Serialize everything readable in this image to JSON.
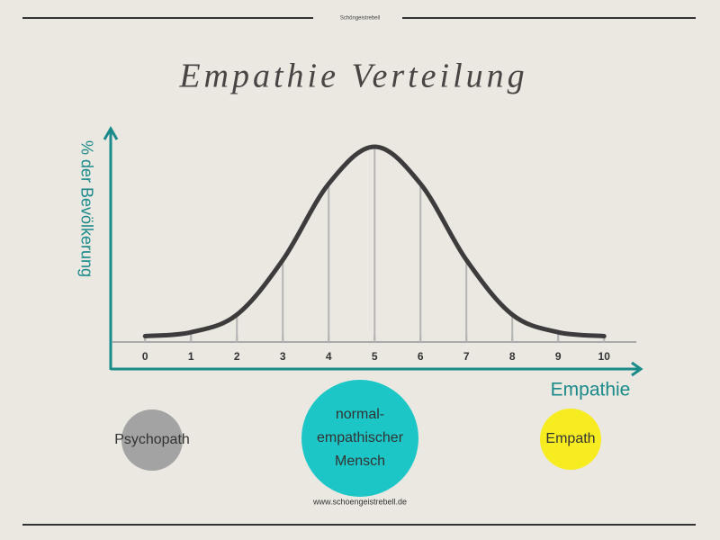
{
  "header": {
    "brand": "Schöngeistrebell"
  },
  "chart_data": {
    "type": "line",
    "title": "Empathie Verteilung",
    "x_label": "Empathie",
    "y_label": "% der Bevölkerung",
    "x": [
      0,
      1,
      2,
      3,
      4,
      5,
      6,
      7,
      8,
      9,
      10
    ],
    "values": [
      3,
      5,
      14,
      42,
      81,
      100,
      81,
      42,
      14,
      5,
      3
    ],
    "xlim": [
      -0.75,
      10.8
    ],
    "xticks": [
      0,
      1,
      2,
      3,
      4,
      5,
      6,
      7,
      8,
      9,
      10
    ],
    "ylim": [
      0,
      100
    ],
    "color": "#3d3b3b",
    "axis_color": "#1a8a8a",
    "groups": [
      {
        "lines": [
          "Psychopath"
        ],
        "color": "#a3a3a3"
      },
      {
        "lines": [
          "normal-",
          "empathischer",
          "Mensch"
        ],
        "color": "#1cc6c6"
      },
      {
        "lines": [
          "Empath"
        ],
        "color": "#f7ec1f"
      }
    ]
  },
  "footer": {
    "url": "www.schoengeistrebell.de"
  }
}
